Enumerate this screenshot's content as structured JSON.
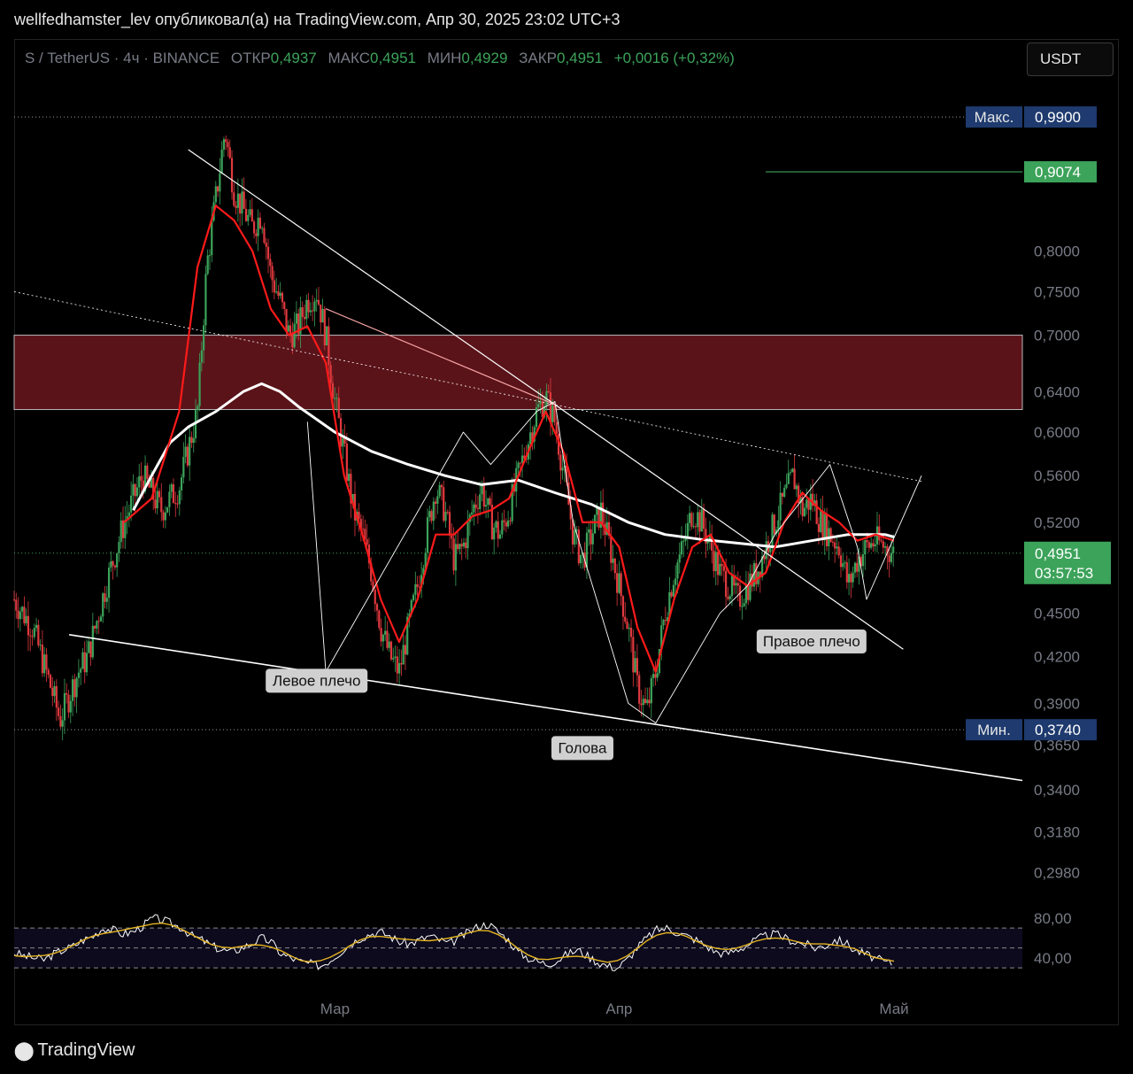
{
  "header": {
    "publish_line": "wellfedhamster_lev опубликовал(а) на TradingView.com, Апр 30, 2025 23:02 UTC+3"
  },
  "legend": {
    "symbol": "S / TetherUS · 4ч · BINANCE",
    "open_label": "ОТКР",
    "open": "0,4937",
    "high_label": "МАКС",
    "high": "0,4951",
    "low_label": "МИН",
    "low": "0,4929",
    "close_label": "ЗАКР",
    "close": "0,4951",
    "change": "+0,0016 (+0,32%)"
  },
  "currency_button": "USDT",
  "footer": {
    "brand": "TradingView",
    "logo_icon": "tradingview-logo-icon"
  },
  "chart_data": {
    "type": "candlestick",
    "y_scale": "log",
    "ylim": [
      0.29,
      1.0
    ],
    "price_ticks": [
      "0,8000",
      "0,7500",
      "0,7000",
      "0,6400",
      "0,6000",
      "0,5600",
      "0,5200",
      "0,4500",
      "0,4200",
      "0,3900",
      "0,3650",
      "0,3400",
      "0,3180",
      "0,2980"
    ],
    "price_tick_values": [
      0.8,
      0.75,
      0.7,
      0.64,
      0.6,
      0.56,
      0.52,
      0.45,
      0.42,
      0.39,
      0.365,
      0.34,
      0.318,
      0.298
    ],
    "x_ticks": [
      "Мар",
      "Апр",
      "Май"
    ],
    "x_tick_days": [
      28,
      59,
      89
    ],
    "x_range_days": [
      -7,
      103
    ],
    "last_day": 89,
    "max_label": {
      "text": "Макс.",
      "value": "0,9900",
      "v": 0.99,
      "color": "#1e3a6e"
    },
    "min_label": {
      "text": "Мин.",
      "value": "0,3740",
      "v": 0.374,
      "color": "#1e3a6e"
    },
    "target_label": {
      "value": "0,9074",
      "v": 0.9074,
      "color": "#3ca35a"
    },
    "current_price": {
      "value": "0,4951",
      "v": 0.4951,
      "countdown": "03:57:53",
      "color": "#3ca35a"
    },
    "resistance_zone": [
      0.622,
      0.7
    ],
    "pattern_labels": [
      {
        "text": "Левое плечо",
        "day": 26,
        "v": 0.404
      },
      {
        "text": "Голова",
        "day": 55,
        "v": 0.363
      },
      {
        "text": "Правое плечо",
        "day": 80,
        "v": 0.43
      }
    ],
    "price_path": [
      [
        -7,
        0.46
      ],
      [
        -5,
        0.44
      ],
      [
        -3,
        0.4
      ],
      [
        -2,
        0.38
      ],
      [
        0,
        0.41
      ],
      [
        1,
        0.42
      ],
      [
        3,
        0.47
      ],
      [
        5,
        0.52
      ],
      [
        7,
        0.56
      ],
      [
        9,
        0.53
      ],
      [
        11,
        0.55
      ],
      [
        13,
        0.62
      ],
      [
        14,
        0.78
      ],
      [
        16,
        0.97
      ],
      [
        17,
        0.88
      ],
      [
        19,
        0.83
      ],
      [
        20,
        0.85
      ],
      [
        21,
        0.77
      ],
      [
        22,
        0.74
      ],
      [
        23,
        0.7
      ],
      [
        24,
        0.71
      ],
      [
        25,
        0.74
      ],
      [
        26,
        0.75
      ],
      [
        27,
        0.7
      ],
      [
        28,
        0.63
      ],
      [
        29,
        0.58
      ],
      [
        30,
        0.53
      ],
      [
        31,
        0.51
      ],
      [
        32,
        0.48
      ],
      [
        33,
        0.44
      ],
      [
        34,
        0.42
      ],
      [
        35,
        0.41
      ],
      [
        36,
        0.44
      ],
      [
        37,
        0.47
      ],
      [
        38,
        0.51
      ],
      [
        39,
        0.55
      ],
      [
        40,
        0.53
      ],
      [
        41,
        0.49
      ],
      [
        42,
        0.5
      ],
      [
        43,
        0.53
      ],
      [
        44,
        0.55
      ],
      [
        45,
        0.52
      ],
      [
        46,
        0.51
      ],
      [
        47,
        0.53
      ],
      [
        48,
        0.56
      ],
      [
        49,
        0.59
      ],
      [
        50,
        0.62
      ],
      [
        51,
        0.635
      ],
      [
        52,
        0.61
      ],
      [
        53,
        0.56
      ],
      [
        54,
        0.51
      ],
      [
        55,
        0.49
      ],
      [
        56,
        0.51
      ],
      [
        57,
        0.53
      ],
      [
        58,
        0.5
      ],
      [
        59,
        0.47
      ],
      [
        60,
        0.44
      ],
      [
        61,
        0.4
      ],
      [
        62,
        0.385
      ],
      [
        63,
        0.41
      ],
      [
        64,
        0.45
      ],
      [
        65,
        0.48
      ],
      [
        66,
        0.5
      ],
      [
        67,
        0.53
      ],
      [
        68,
        0.52
      ],
      [
        69,
        0.5
      ],
      [
        70,
        0.48
      ],
      [
        71,
        0.47
      ],
      [
        72,
        0.46
      ],
      [
        73,
        0.47
      ],
      [
        74,
        0.48
      ],
      [
        75,
        0.5
      ],
      [
        76,
        0.52
      ],
      [
        77,
        0.54
      ],
      [
        78,
        0.56
      ],
      [
        79,
        0.53
      ],
      [
        80,
        0.54
      ],
      [
        81,
        0.52
      ],
      [
        82,
        0.51
      ],
      [
        83,
        0.5
      ],
      [
        84,
        0.47
      ],
      [
        85,
        0.49
      ],
      [
        86,
        0.5
      ],
      [
        87,
        0.505
      ],
      [
        88,
        0.5
      ],
      [
        89,
        0.4951
      ]
    ],
    "pattern_lines": [
      {
        "color": "#ffffff",
        "width": 1.6,
        "dash": "",
        "points": [
          [
            -1,
            0.435
          ],
          [
            103,
            0.345
          ]
        ]
      },
      {
        "color": "#ffffff",
        "width": 1.2,
        "dash": "",
        "points": [
          [
            12,
            0.94
          ],
          [
            52,
            0.627
          ]
        ]
      },
      {
        "color": "#f5a3a3",
        "width": 1.2,
        "dash": "",
        "points": [
          [
            27,
            0.73
          ],
          [
            52,
            0.627
          ]
        ]
      },
      {
        "color": "#ffffff",
        "width": 1.2,
        "dash": "",
        "points": [
          [
            52,
            0.627
          ],
          [
            90,
            0.425
          ]
        ]
      },
      {
        "color": "#ffffff",
        "width": 0.8,
        "dash": "2,3",
        "points": [
          [
            -7,
            0.75
          ],
          [
            92,
            0.555
          ]
        ]
      },
      {
        "color": "#ffffff",
        "width": 0.9,
        "dash": "",
        "points": [
          [
            25,
            0.61
          ],
          [
            27,
            0.41
          ],
          [
            42,
            0.6
          ],
          [
            45,
            0.57
          ],
          [
            50,
            0.62
          ],
          [
            52,
            0.63
          ],
          [
            54,
            0.52
          ],
          [
            60,
            0.39
          ],
          [
            63,
            0.378
          ],
          [
            70,
            0.45
          ],
          [
            73,
            0.47
          ],
          [
            76,
            0.51
          ],
          [
            82,
            0.57
          ],
          [
            85,
            0.5
          ],
          [
            86,
            0.46
          ],
          [
            92,
            0.56
          ]
        ]
      }
    ],
    "ma_white": [
      [
        6,
        0.53
      ],
      [
        8,
        0.56
      ],
      [
        10,
        0.59
      ],
      [
        12,
        0.605
      ],
      [
        15,
        0.62
      ],
      [
        18,
        0.64
      ],
      [
        20,
        0.648
      ],
      [
        22,
        0.64
      ],
      [
        24,
        0.625
      ],
      [
        28,
        0.6
      ],
      [
        32,
        0.582
      ],
      [
        36,
        0.57
      ],
      [
        40,
        0.56
      ],
      [
        44,
        0.552
      ],
      [
        48,
        0.556
      ],
      [
        52,
        0.545
      ],
      [
        56,
        0.535
      ],
      [
        60,
        0.52
      ],
      [
        64,
        0.51
      ],
      [
        68,
        0.506
      ],
      [
        72,
        0.503
      ],
      [
        76,
        0.5
      ],
      [
        80,
        0.505
      ],
      [
        84,
        0.51
      ],
      [
        88,
        0.51
      ],
      [
        89,
        0.508
      ]
    ],
    "ma_red": [
      [
        5,
        0.52
      ],
      [
        8,
        0.54
      ],
      [
        11,
        0.62
      ],
      [
        13,
        0.78
      ],
      [
        15,
        0.86
      ],
      [
        17,
        0.84
      ],
      [
        19,
        0.8
      ],
      [
        21,
        0.73
      ],
      [
        23,
        0.7
      ],
      [
        25,
        0.71
      ],
      [
        27,
        0.67
      ],
      [
        29,
        0.56
      ],
      [
        31,
        0.51
      ],
      [
        33,
        0.46
      ],
      [
        35,
        0.43
      ],
      [
        37,
        0.46
      ],
      [
        39,
        0.51
      ],
      [
        41,
        0.51
      ],
      [
        43,
        0.525
      ],
      [
        45,
        0.53
      ],
      [
        47,
        0.54
      ],
      [
        49,
        0.58
      ],
      [
        51,
        0.62
      ],
      [
        53,
        0.58
      ],
      [
        55,
        0.52
      ],
      [
        57,
        0.52
      ],
      [
        59,
        0.5
      ],
      [
        61,
        0.44
      ],
      [
        63,
        0.41
      ],
      [
        65,
        0.46
      ],
      [
        67,
        0.5
      ],
      [
        69,
        0.51
      ],
      [
        71,
        0.48
      ],
      [
        73,
        0.47
      ],
      [
        75,
        0.48
      ],
      [
        77,
        0.52
      ],
      [
        79,
        0.545
      ],
      [
        81,
        0.53
      ],
      [
        83,
        0.52
      ],
      [
        85,
        0.505
      ],
      [
        87,
        0.51
      ],
      [
        89,
        0.505
      ]
    ],
    "rsi": {
      "ylim": [
        15,
        95
      ],
      "ticks": [
        "80,00",
        "40,00"
      ],
      "tick_values": [
        80,
        40
      ],
      "upper": 70,
      "lower": 30,
      "mid": 50,
      "values": [
        45,
        42,
        40,
        38,
        44,
        48,
        52,
        58,
        62,
        70,
        68,
        64,
        66,
        72,
        80,
        78,
        74,
        70,
        62,
        58,
        52,
        48,
        46,
        50,
        54,
        60,
        56,
        44,
        40,
        36,
        34,
        32,
        38,
        46,
        54,
        60,
        64,
        66,
        62,
        56,
        54,
        58,
        62,
        58,
        54,
        60,
        66,
        72,
        74,
        66,
        58,
        46,
        40,
        36,
        34,
        38,
        44,
        48,
        42,
        36,
        32,
        30,
        38,
        50,
        60,
        68,
        70,
        66,
        62,
        58,
        52,
        46,
        44,
        48,
        52,
        58,
        62,
        64,
        60,
        56,
        54,
        50,
        52,
        58,
        56,
        48,
        44,
        40,
        36,
        34
      ]
    }
  }
}
